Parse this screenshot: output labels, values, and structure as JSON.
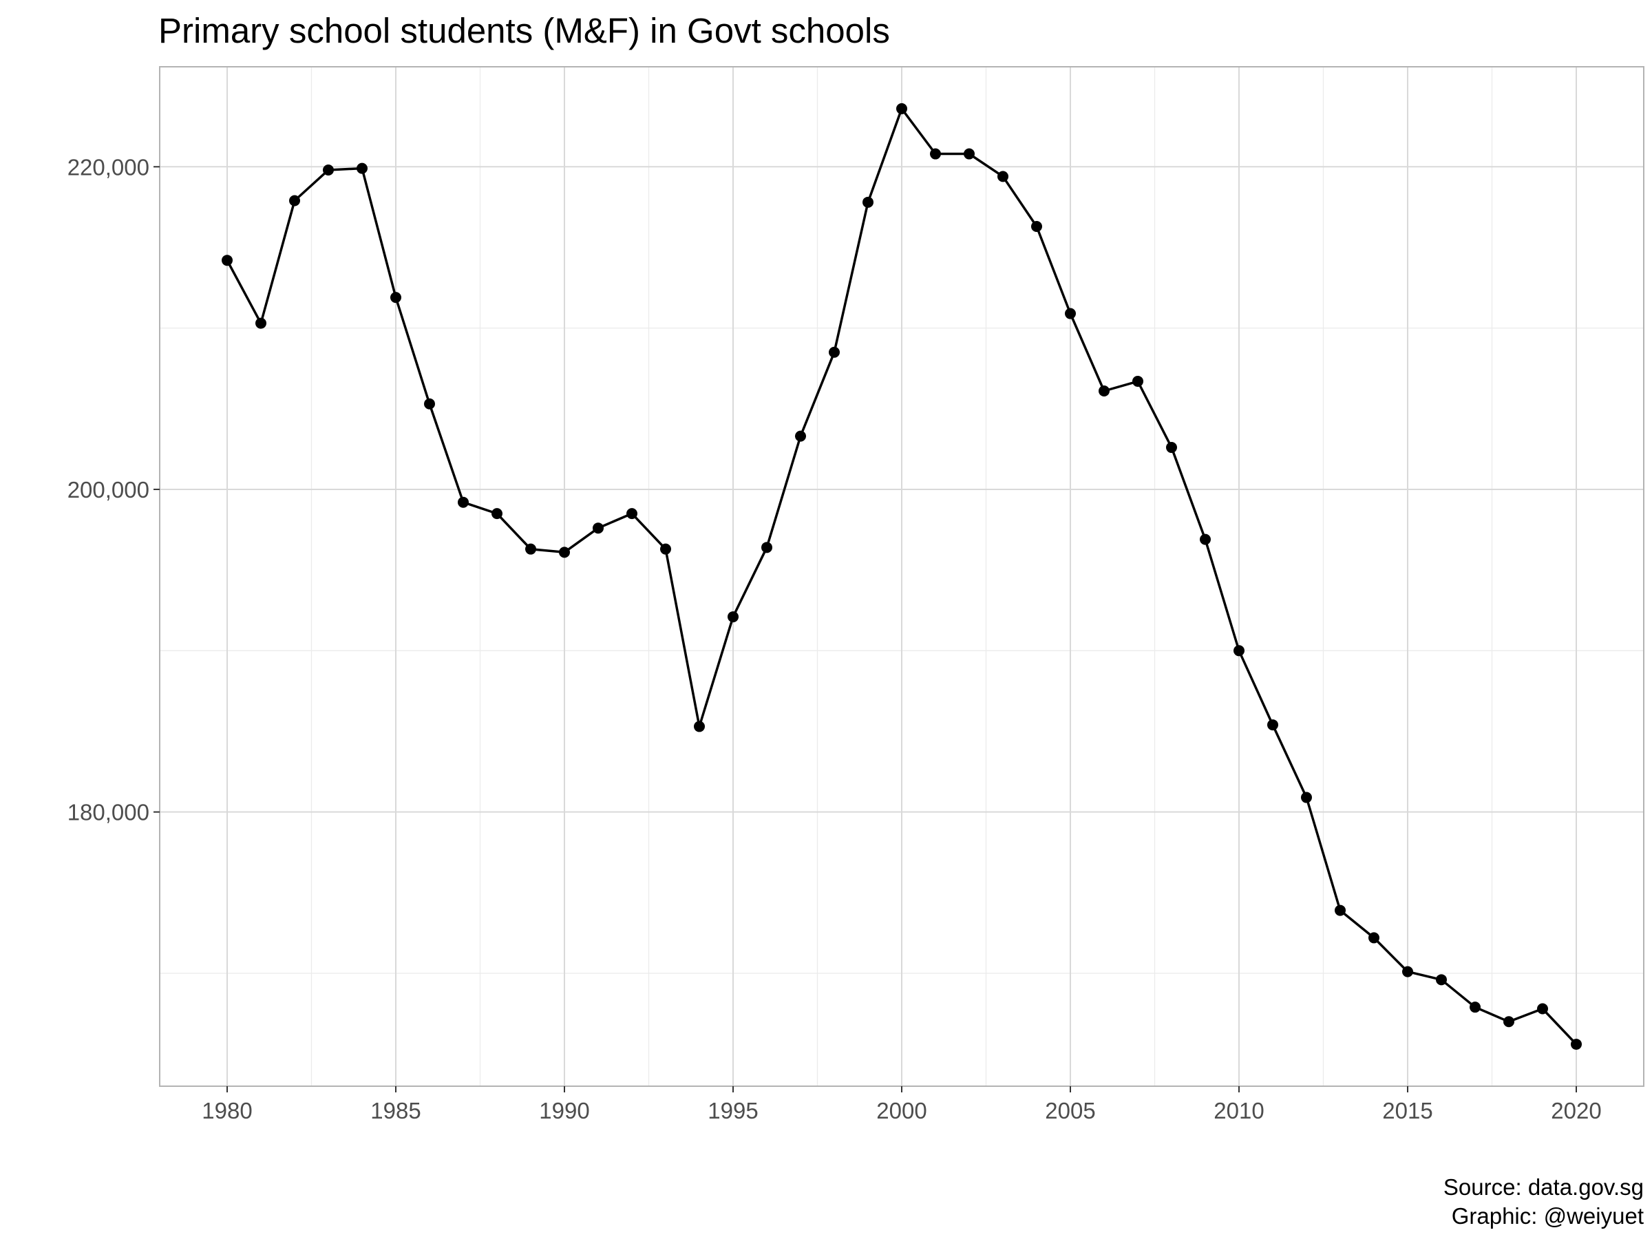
{
  "chart_data": {
    "type": "line",
    "title": "Primary school students (M&F) in Govt schools",
    "xlabel": "",
    "ylabel": "",
    "caption": [
      "Source: data.gov.sg",
      "Graphic: @weiyuet"
    ],
    "xlim": [
      1978,
      2022
    ],
    "ylim": [
      163000,
      226200
    ],
    "x_ticks": [
      1980,
      1985,
      1990,
      1995,
      2000,
      2005,
      2010,
      2015,
      2020
    ],
    "x_tick_labels": [
      "1980",
      "1985",
      "1990",
      "1995",
      "2000",
      "2005",
      "2010",
      "2015",
      "2020"
    ],
    "y_ticks": [
      180000,
      200000,
      220000
    ],
    "y_tick_labels": [
      "180,000",
      "200,000",
      "220,000"
    ],
    "y_minor_ticks": [
      170000,
      190000,
      210000
    ],
    "grid": true,
    "legend": "none",
    "series": [
      {
        "color": "#000000",
        "x": [
          1980,
          1981,
          1982,
          1983,
          1984,
          1985,
          1986,
          1987,
          1988,
          1989,
          1990,
          1991,
          1992,
          1993,
          1994,
          1995,
          1996,
          1997,
          1998,
          1999,
          2000,
          2001,
          2002,
          2003,
          2004,
          2005,
          2006,
          2007,
          2008,
          2009,
          2010,
          2011,
          2012,
          2013,
          2014,
          2015,
          2016,
          2017,
          2018,
          2019,
          2020
        ],
        "y": [
          214200,
          210300,
          217900,
          219800,
          219900,
          211900,
          205300,
          199200,
          198500,
          196300,
          196100,
          197600,
          198500,
          196300,
          185300,
          192100,
          196400,
          203300,
          208500,
          217800,
          223600,
          220800,
          220800,
          219400,
          216300,
          210900,
          206100,
          206700,
          202600,
          196900,
          190000,
          185400,
          180900,
          173900,
          172200,
          170100,
          169600,
          167900,
          167000,
          167800,
          165600
        ]
      }
    ]
  }
}
